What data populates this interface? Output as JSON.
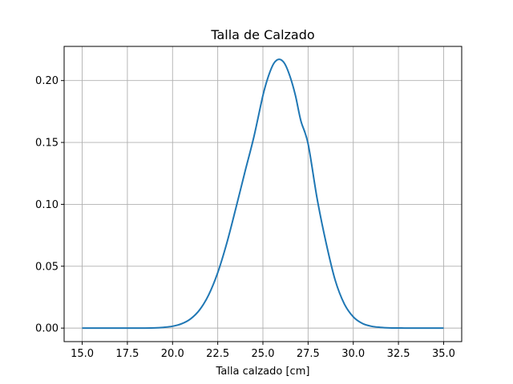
{
  "chart_data": {
    "type": "line",
    "title": "Talla de Calzado",
    "xlabel": "Talla calzado [cm]",
    "ylabel": "",
    "xlim": [
      14.0,
      36.0
    ],
    "ylim": [
      -0.0109,
      0.2276
    ],
    "grid": true,
    "x_ticks": [
      "15.0",
      "17.5",
      "20.0",
      "22.5",
      "25.0",
      "27.5",
      "30.0",
      "32.5",
      "35.0"
    ],
    "y_ticks": [
      "0.00",
      "0.05",
      "0.10",
      "0.15",
      "0.20"
    ],
    "color": "#1f77b4",
    "series": [
      {
        "x": [
          15.0,
          16.0,
          17.0,
          18.0,
          19.0,
          19.5,
          20.0,
          20.5,
          21.0,
          21.5,
          22.0,
          22.5,
          23.0,
          23.5,
          24.0,
          24.5,
          25.0,
          25.3,
          25.6,
          25.9,
          26.2,
          26.5,
          26.8,
          27.1,
          27.5,
          28.0,
          28.5,
          29.0,
          29.5,
          30.0,
          30.5,
          31.0,
          31.5,
          32.0,
          32.5,
          33.0,
          34.0,
          35.0
        ],
        "y": [
          0.0,
          0.0,
          0.0,
          0.0,
          0.0002,
          0.0006,
          0.0015,
          0.0035,
          0.0075,
          0.0148,
          0.0269,
          0.0448,
          0.0686,
          0.0967,
          0.1259,
          0.1545,
          0.1879,
          0.2033,
          0.2138,
          0.2172,
          0.2138,
          0.2033,
          0.1879,
          0.1675,
          0.1489,
          0.1046,
          0.0686,
          0.0387,
          0.0197,
          0.0091,
          0.0038,
          0.0015,
          0.0006,
          0.0002,
          0.0001,
          0.0,
          0.0,
          0.0
        ]
      }
    ]
  }
}
